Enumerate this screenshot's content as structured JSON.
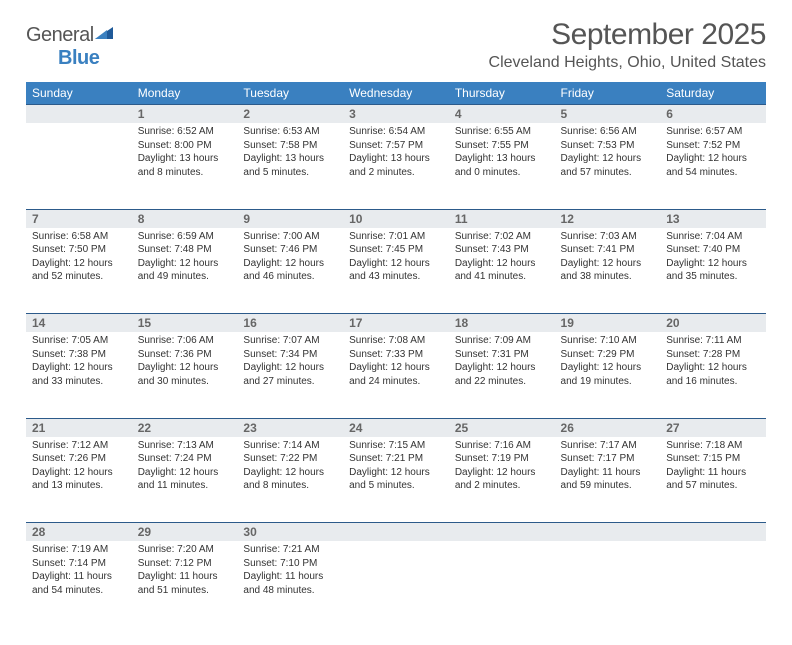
{
  "logo": {
    "part1": "General",
    "part2": "Blue"
  },
  "title": "September 2025",
  "location": "Cleveland Heights, Ohio, United States",
  "header_bg": "#3a80c0",
  "daynum_bg": "#e8ebee",
  "rule_color": "#2c5a8a",
  "weekdays": [
    "Sunday",
    "Monday",
    "Tuesday",
    "Wednesday",
    "Thursday",
    "Friday",
    "Saturday"
  ],
  "weeks": [
    [
      null,
      {
        "n": "1",
        "sr": "Sunrise: 6:52 AM",
        "ss": "Sunset: 8:00 PM",
        "dl": "Daylight: 13 hours and 8 minutes."
      },
      {
        "n": "2",
        "sr": "Sunrise: 6:53 AM",
        "ss": "Sunset: 7:58 PM",
        "dl": "Daylight: 13 hours and 5 minutes."
      },
      {
        "n": "3",
        "sr": "Sunrise: 6:54 AM",
        "ss": "Sunset: 7:57 PM",
        "dl": "Daylight: 13 hours and 2 minutes."
      },
      {
        "n": "4",
        "sr": "Sunrise: 6:55 AM",
        "ss": "Sunset: 7:55 PM",
        "dl": "Daylight: 13 hours and 0 minutes."
      },
      {
        "n": "5",
        "sr": "Sunrise: 6:56 AM",
        "ss": "Sunset: 7:53 PM",
        "dl": "Daylight: 12 hours and 57 minutes."
      },
      {
        "n": "6",
        "sr": "Sunrise: 6:57 AM",
        "ss": "Sunset: 7:52 PM",
        "dl": "Daylight: 12 hours and 54 minutes."
      }
    ],
    [
      {
        "n": "7",
        "sr": "Sunrise: 6:58 AM",
        "ss": "Sunset: 7:50 PM",
        "dl": "Daylight: 12 hours and 52 minutes."
      },
      {
        "n": "8",
        "sr": "Sunrise: 6:59 AM",
        "ss": "Sunset: 7:48 PM",
        "dl": "Daylight: 12 hours and 49 minutes."
      },
      {
        "n": "9",
        "sr": "Sunrise: 7:00 AM",
        "ss": "Sunset: 7:46 PM",
        "dl": "Daylight: 12 hours and 46 minutes."
      },
      {
        "n": "10",
        "sr": "Sunrise: 7:01 AM",
        "ss": "Sunset: 7:45 PM",
        "dl": "Daylight: 12 hours and 43 minutes."
      },
      {
        "n": "11",
        "sr": "Sunrise: 7:02 AM",
        "ss": "Sunset: 7:43 PM",
        "dl": "Daylight: 12 hours and 41 minutes."
      },
      {
        "n": "12",
        "sr": "Sunrise: 7:03 AM",
        "ss": "Sunset: 7:41 PM",
        "dl": "Daylight: 12 hours and 38 minutes."
      },
      {
        "n": "13",
        "sr": "Sunrise: 7:04 AM",
        "ss": "Sunset: 7:40 PM",
        "dl": "Daylight: 12 hours and 35 minutes."
      }
    ],
    [
      {
        "n": "14",
        "sr": "Sunrise: 7:05 AM",
        "ss": "Sunset: 7:38 PM",
        "dl": "Daylight: 12 hours and 33 minutes."
      },
      {
        "n": "15",
        "sr": "Sunrise: 7:06 AM",
        "ss": "Sunset: 7:36 PM",
        "dl": "Daylight: 12 hours and 30 minutes."
      },
      {
        "n": "16",
        "sr": "Sunrise: 7:07 AM",
        "ss": "Sunset: 7:34 PM",
        "dl": "Daylight: 12 hours and 27 minutes."
      },
      {
        "n": "17",
        "sr": "Sunrise: 7:08 AM",
        "ss": "Sunset: 7:33 PM",
        "dl": "Daylight: 12 hours and 24 minutes."
      },
      {
        "n": "18",
        "sr": "Sunrise: 7:09 AM",
        "ss": "Sunset: 7:31 PM",
        "dl": "Daylight: 12 hours and 22 minutes."
      },
      {
        "n": "19",
        "sr": "Sunrise: 7:10 AM",
        "ss": "Sunset: 7:29 PM",
        "dl": "Daylight: 12 hours and 19 minutes."
      },
      {
        "n": "20",
        "sr": "Sunrise: 7:11 AM",
        "ss": "Sunset: 7:28 PM",
        "dl": "Daylight: 12 hours and 16 minutes."
      }
    ],
    [
      {
        "n": "21",
        "sr": "Sunrise: 7:12 AM",
        "ss": "Sunset: 7:26 PM",
        "dl": "Daylight: 12 hours and 13 minutes."
      },
      {
        "n": "22",
        "sr": "Sunrise: 7:13 AM",
        "ss": "Sunset: 7:24 PM",
        "dl": "Daylight: 12 hours and 11 minutes."
      },
      {
        "n": "23",
        "sr": "Sunrise: 7:14 AM",
        "ss": "Sunset: 7:22 PM",
        "dl": "Daylight: 12 hours and 8 minutes."
      },
      {
        "n": "24",
        "sr": "Sunrise: 7:15 AM",
        "ss": "Sunset: 7:21 PM",
        "dl": "Daylight: 12 hours and 5 minutes."
      },
      {
        "n": "25",
        "sr": "Sunrise: 7:16 AM",
        "ss": "Sunset: 7:19 PM",
        "dl": "Daylight: 12 hours and 2 minutes."
      },
      {
        "n": "26",
        "sr": "Sunrise: 7:17 AM",
        "ss": "Sunset: 7:17 PM",
        "dl": "Daylight: 11 hours and 59 minutes."
      },
      {
        "n": "27",
        "sr": "Sunrise: 7:18 AM",
        "ss": "Sunset: 7:15 PM",
        "dl": "Daylight: 11 hours and 57 minutes."
      }
    ],
    [
      {
        "n": "28",
        "sr": "Sunrise: 7:19 AM",
        "ss": "Sunset: 7:14 PM",
        "dl": "Daylight: 11 hours and 54 minutes."
      },
      {
        "n": "29",
        "sr": "Sunrise: 7:20 AM",
        "ss": "Sunset: 7:12 PM",
        "dl": "Daylight: 11 hours and 51 minutes."
      },
      {
        "n": "30",
        "sr": "Sunrise: 7:21 AM",
        "ss": "Sunset: 7:10 PM",
        "dl": "Daylight: 11 hours and 48 minutes."
      },
      null,
      null,
      null,
      null
    ]
  ]
}
